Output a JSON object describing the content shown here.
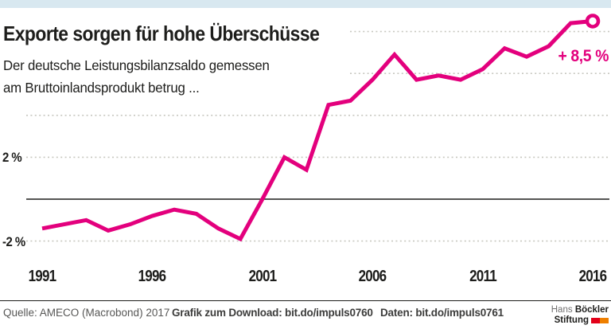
{
  "header": {
    "title": "Exporte sorgen für hohe Überschüsse",
    "subtitle_line1": "Der deutsche Leistungsbilanzsaldo gemessen",
    "subtitle_line2": "am Bruttoinlandsprodukt betrug ..."
  },
  "chart_data": {
    "type": "line",
    "title": "Exporte sorgen für hohe Überschüsse",
    "subtitle": "Der deutsche Leistungsbilanzsaldo gemessen am Bruttoinlandsprodukt betrug ...",
    "unit": "% des BIP",
    "x": [
      1991,
      1992,
      1993,
      1994,
      1995,
      1996,
      1997,
      1998,
      1999,
      2000,
      2001,
      2002,
      2003,
      2004,
      2005,
      2006,
      2007,
      2008,
      2009,
      2010,
      2011,
      2012,
      2013,
      2014,
      2015,
      2016
    ],
    "values": [
      -1.4,
      -1.2,
      -1.0,
      -1.5,
      -1.2,
      -0.8,
      -0.5,
      -0.7,
      -1.4,
      -1.9,
      0.0,
      2.0,
      1.4,
      4.5,
      4.7,
      5.7,
      6.9,
      5.7,
      5.9,
      5.7,
      6.2,
      7.2,
      6.8,
      7.3,
      8.4,
      8.5
    ],
    "x_tick_labels": [
      "1991",
      "1996",
      "2001",
      "2006",
      "2011",
      "2016"
    ],
    "y_ticks": [
      {
        "label": "2 %",
        "value": 2
      },
      {
        "label": "-2 %",
        "value": -2
      }
    ],
    "gridlines": [
      8,
      6,
      4,
      2,
      -2
    ],
    "zero_line": true,
    "xlim": [
      1991,
      2016
    ],
    "ylim": [
      -2.5,
      9
    ],
    "legend": "none",
    "end_label": "+ 8,5 %",
    "end_value": 8.5,
    "line_color": "#e3007d",
    "grid_color": "#c8c8c0"
  },
  "footer": {
    "source": "Quelle: AMECO (Macrobond) 2017",
    "download": "Grafik zum Download: bit.do/impuls0760",
    "data_link": "Daten: bit.do/impuls0761",
    "logo": {
      "line1_regular": "Hans",
      "line1_bold": "Böckler",
      "line2_bold": "Stiftung",
      "block_colors": [
        "#e2001a",
        "#ee7f00"
      ]
    }
  },
  "colors": {
    "accent": "#e3007d",
    "topbar": "#d8e8f0",
    "axis": "#1d1d1b"
  }
}
